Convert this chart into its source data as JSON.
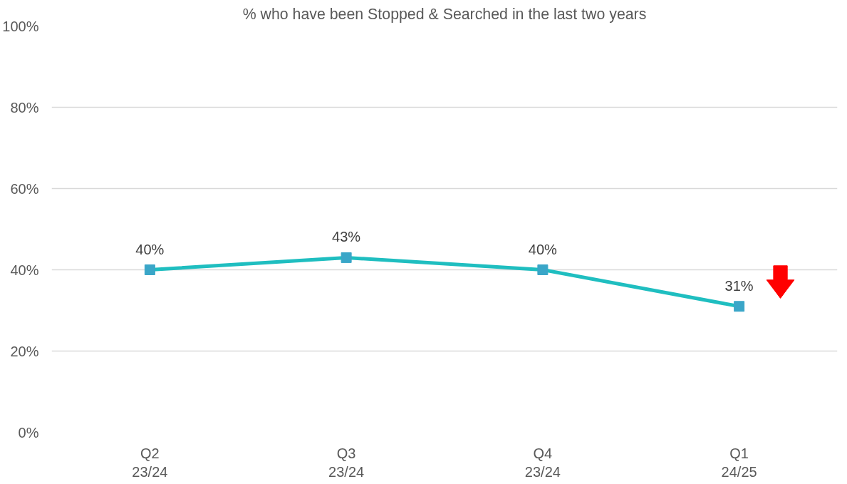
{
  "chart_data": {
    "type": "line",
    "title": "% who have been Stopped & Searched in the last two years",
    "categories": [
      "Q2\n23/24",
      "Q3\n23/24",
      "Q4\n23/24",
      "Q1\n24/25"
    ],
    "series": [
      {
        "color": "#1fbec0",
        "values": [
          40,
          43,
          40,
          31
        ],
        "value_labels": [
          "40%",
          "43%",
          "40%",
          "31%"
        ]
      }
    ],
    "ylim": [
      0,
      100
    ],
    "yticks": [
      {
        "value": 0,
        "label": "0%"
      },
      {
        "value": 20,
        "label": "20%"
      },
      {
        "value": 40,
        "label": "40%"
      },
      {
        "value": 60,
        "label": "60%"
      },
      {
        "value": 80,
        "label": "80%"
      },
      {
        "value": 100,
        "label": "100%"
      }
    ],
    "grid": "y",
    "marker": "square",
    "line_style": "solid"
  }
}
